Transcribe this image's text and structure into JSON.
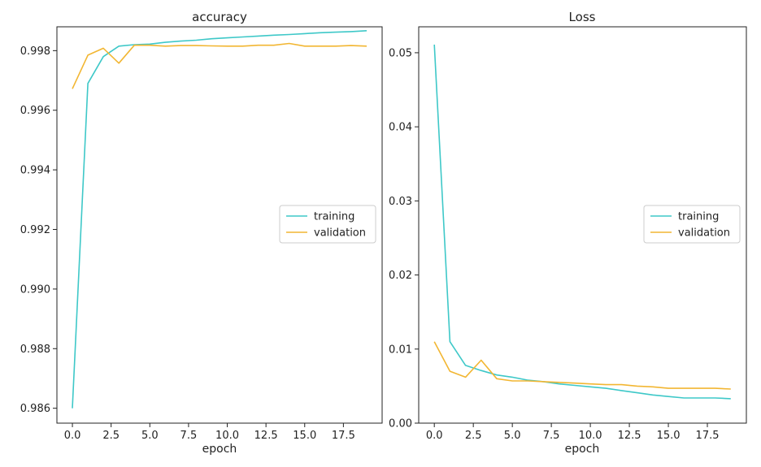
{
  "chart_data": [
    {
      "type": "line",
      "title": "accuracy",
      "xlabel": "epoch",
      "ylabel": "",
      "xlim": [
        -1,
        20
      ],
      "ylim": [
        0.9855,
        0.9988
      ],
      "x_ticks": [
        0.0,
        2.5,
        5.0,
        7.5,
        10.0,
        12.5,
        15.0,
        17.5
      ],
      "x_tick_labels": [
        "0.0",
        "2.5",
        "5.0",
        "7.5",
        "10.0",
        "12.5",
        "15.0",
        "17.5"
      ],
      "y_ticks": [
        0.986,
        0.988,
        0.99,
        0.992,
        0.994,
        0.996,
        0.998
      ],
      "y_tick_labels": [
        "0.986",
        "0.988",
        "0.990",
        "0.992",
        "0.994",
        "0.996",
        "0.998"
      ],
      "grid": false,
      "legend_position": "center-right",
      "x": [
        0,
        1,
        2,
        3,
        4,
        5,
        6,
        7,
        8,
        9,
        10,
        11,
        12,
        13,
        14,
        15,
        16,
        17,
        18,
        19
      ],
      "series": [
        {
          "name": "training",
          "color": "#3ec8c8",
          "values": [
            0.986,
            0.9969,
            0.9978,
            0.99815,
            0.9982,
            0.99822,
            0.99828,
            0.99832,
            0.99835,
            0.9984,
            0.99843,
            0.99846,
            0.99849,
            0.99852,
            0.99854,
            0.99857,
            0.9986,
            0.99862,
            0.99864,
            0.99867
          ]
        },
        {
          "name": "validation",
          "color": "#f2b632",
          "values": [
            0.99672,
            0.99785,
            0.99808,
            0.99758,
            0.99818,
            0.99818,
            0.99815,
            0.99817,
            0.99817,
            0.99816,
            0.99815,
            0.99815,
            0.99818,
            0.99818,
            0.99824,
            0.99815,
            0.99815,
            0.99815,
            0.99817,
            0.99815
          ]
        }
      ]
    },
    {
      "type": "line",
      "title": "Loss",
      "xlabel": "epoch",
      "ylabel": "",
      "xlim": [
        -1,
        20
      ],
      "ylim": [
        0,
        0.0535
      ],
      "x_ticks": [
        0.0,
        2.5,
        5.0,
        7.5,
        10.0,
        12.5,
        15.0,
        17.5
      ],
      "x_tick_labels": [
        "0.0",
        "2.5",
        "5.0",
        "7.5",
        "10.0",
        "12.5",
        "15.0",
        "17.5"
      ],
      "y_ticks": [
        0.0,
        0.01,
        0.02,
        0.03,
        0.04,
        0.05
      ],
      "y_tick_labels": [
        "0.00",
        "0.01",
        "0.02",
        "0.03",
        "0.04",
        "0.05"
      ],
      "grid": false,
      "legend_position": "center-right",
      "x": [
        0,
        1,
        2,
        3,
        4,
        5,
        6,
        7,
        8,
        9,
        10,
        11,
        12,
        13,
        14,
        15,
        16,
        17,
        18,
        19
      ],
      "series": [
        {
          "name": "training",
          "color": "#3ec8c8",
          "values": [
            0.0511,
            0.011,
            0.0078,
            0.0071,
            0.0065,
            0.0062,
            0.0058,
            0.0056,
            0.0053,
            0.0051,
            0.0049,
            0.0047,
            0.0044,
            0.0041,
            0.0038,
            0.0036,
            0.0034,
            0.0034,
            0.0034,
            0.0033
          ]
        },
        {
          "name": "validation",
          "color": "#f2b632",
          "values": [
            0.011,
            0.007,
            0.0062,
            0.0085,
            0.006,
            0.0057,
            0.0057,
            0.0056,
            0.0055,
            0.0054,
            0.0053,
            0.0052,
            0.0052,
            0.005,
            0.0049,
            0.0047,
            0.0047,
            0.0047,
            0.0047,
            0.0046
          ]
        }
      ]
    }
  ]
}
